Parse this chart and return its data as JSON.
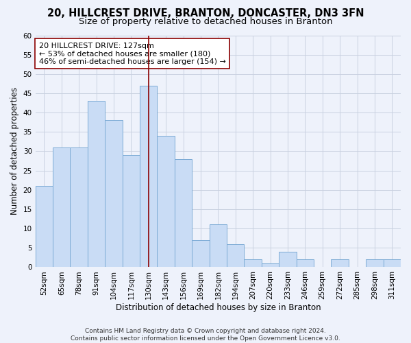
{
  "title_line1": "20, HILLCREST DRIVE, BRANTON, DONCASTER, DN3 3FN",
  "title_line2": "Size of property relative to detached houses in Branton",
  "xlabel": "Distribution of detached houses by size in Branton",
  "ylabel": "Number of detached properties",
  "categories": [
    "52sqm",
    "65sqm",
    "78sqm",
    "91sqm",
    "104sqm",
    "117sqm",
    "130sqm",
    "143sqm",
    "156sqm",
    "169sqm",
    "182sqm",
    "194sqm",
    "207sqm",
    "220sqm",
    "233sqm",
    "246sqm",
    "259sqm",
    "272sqm",
    "285sqm",
    "298sqm",
    "311sqm"
  ],
  "values": [
    21,
    31,
    31,
    43,
    38,
    29,
    47,
    34,
    28,
    7,
    11,
    6,
    2,
    1,
    4,
    2,
    0,
    2,
    0,
    2,
    2
  ],
  "bar_color": "#c9dcf5",
  "bar_edge_color": "#7aaad4",
  "vline_x_idx": 6,
  "vline_color": "#8b0000",
  "annotation_text": "20 HILLCREST DRIVE: 127sqm\n← 53% of detached houses are smaller (180)\n46% of semi-detached houses are larger (154) →",
  "annotation_box_color": "white",
  "annotation_box_edge_color": "#8b0000",
  "ylim": [
    0,
    60
  ],
  "yticks": [
    0,
    5,
    10,
    15,
    20,
    25,
    30,
    35,
    40,
    45,
    50,
    55,
    60
  ],
  "grid_color": "#c8d0e0",
  "footer_line1": "Contains HM Land Registry data © Crown copyright and database right 2024.",
  "footer_line2": "Contains public sector information licensed under the Open Government Licence v3.0.",
  "bg_color": "#eef2fb",
  "title_fontsize": 10.5,
  "subtitle_fontsize": 9.5,
  "axis_label_fontsize": 8.5,
  "tick_fontsize": 7.5,
  "annotation_fontsize": 8,
  "footer_fontsize": 6.5
}
